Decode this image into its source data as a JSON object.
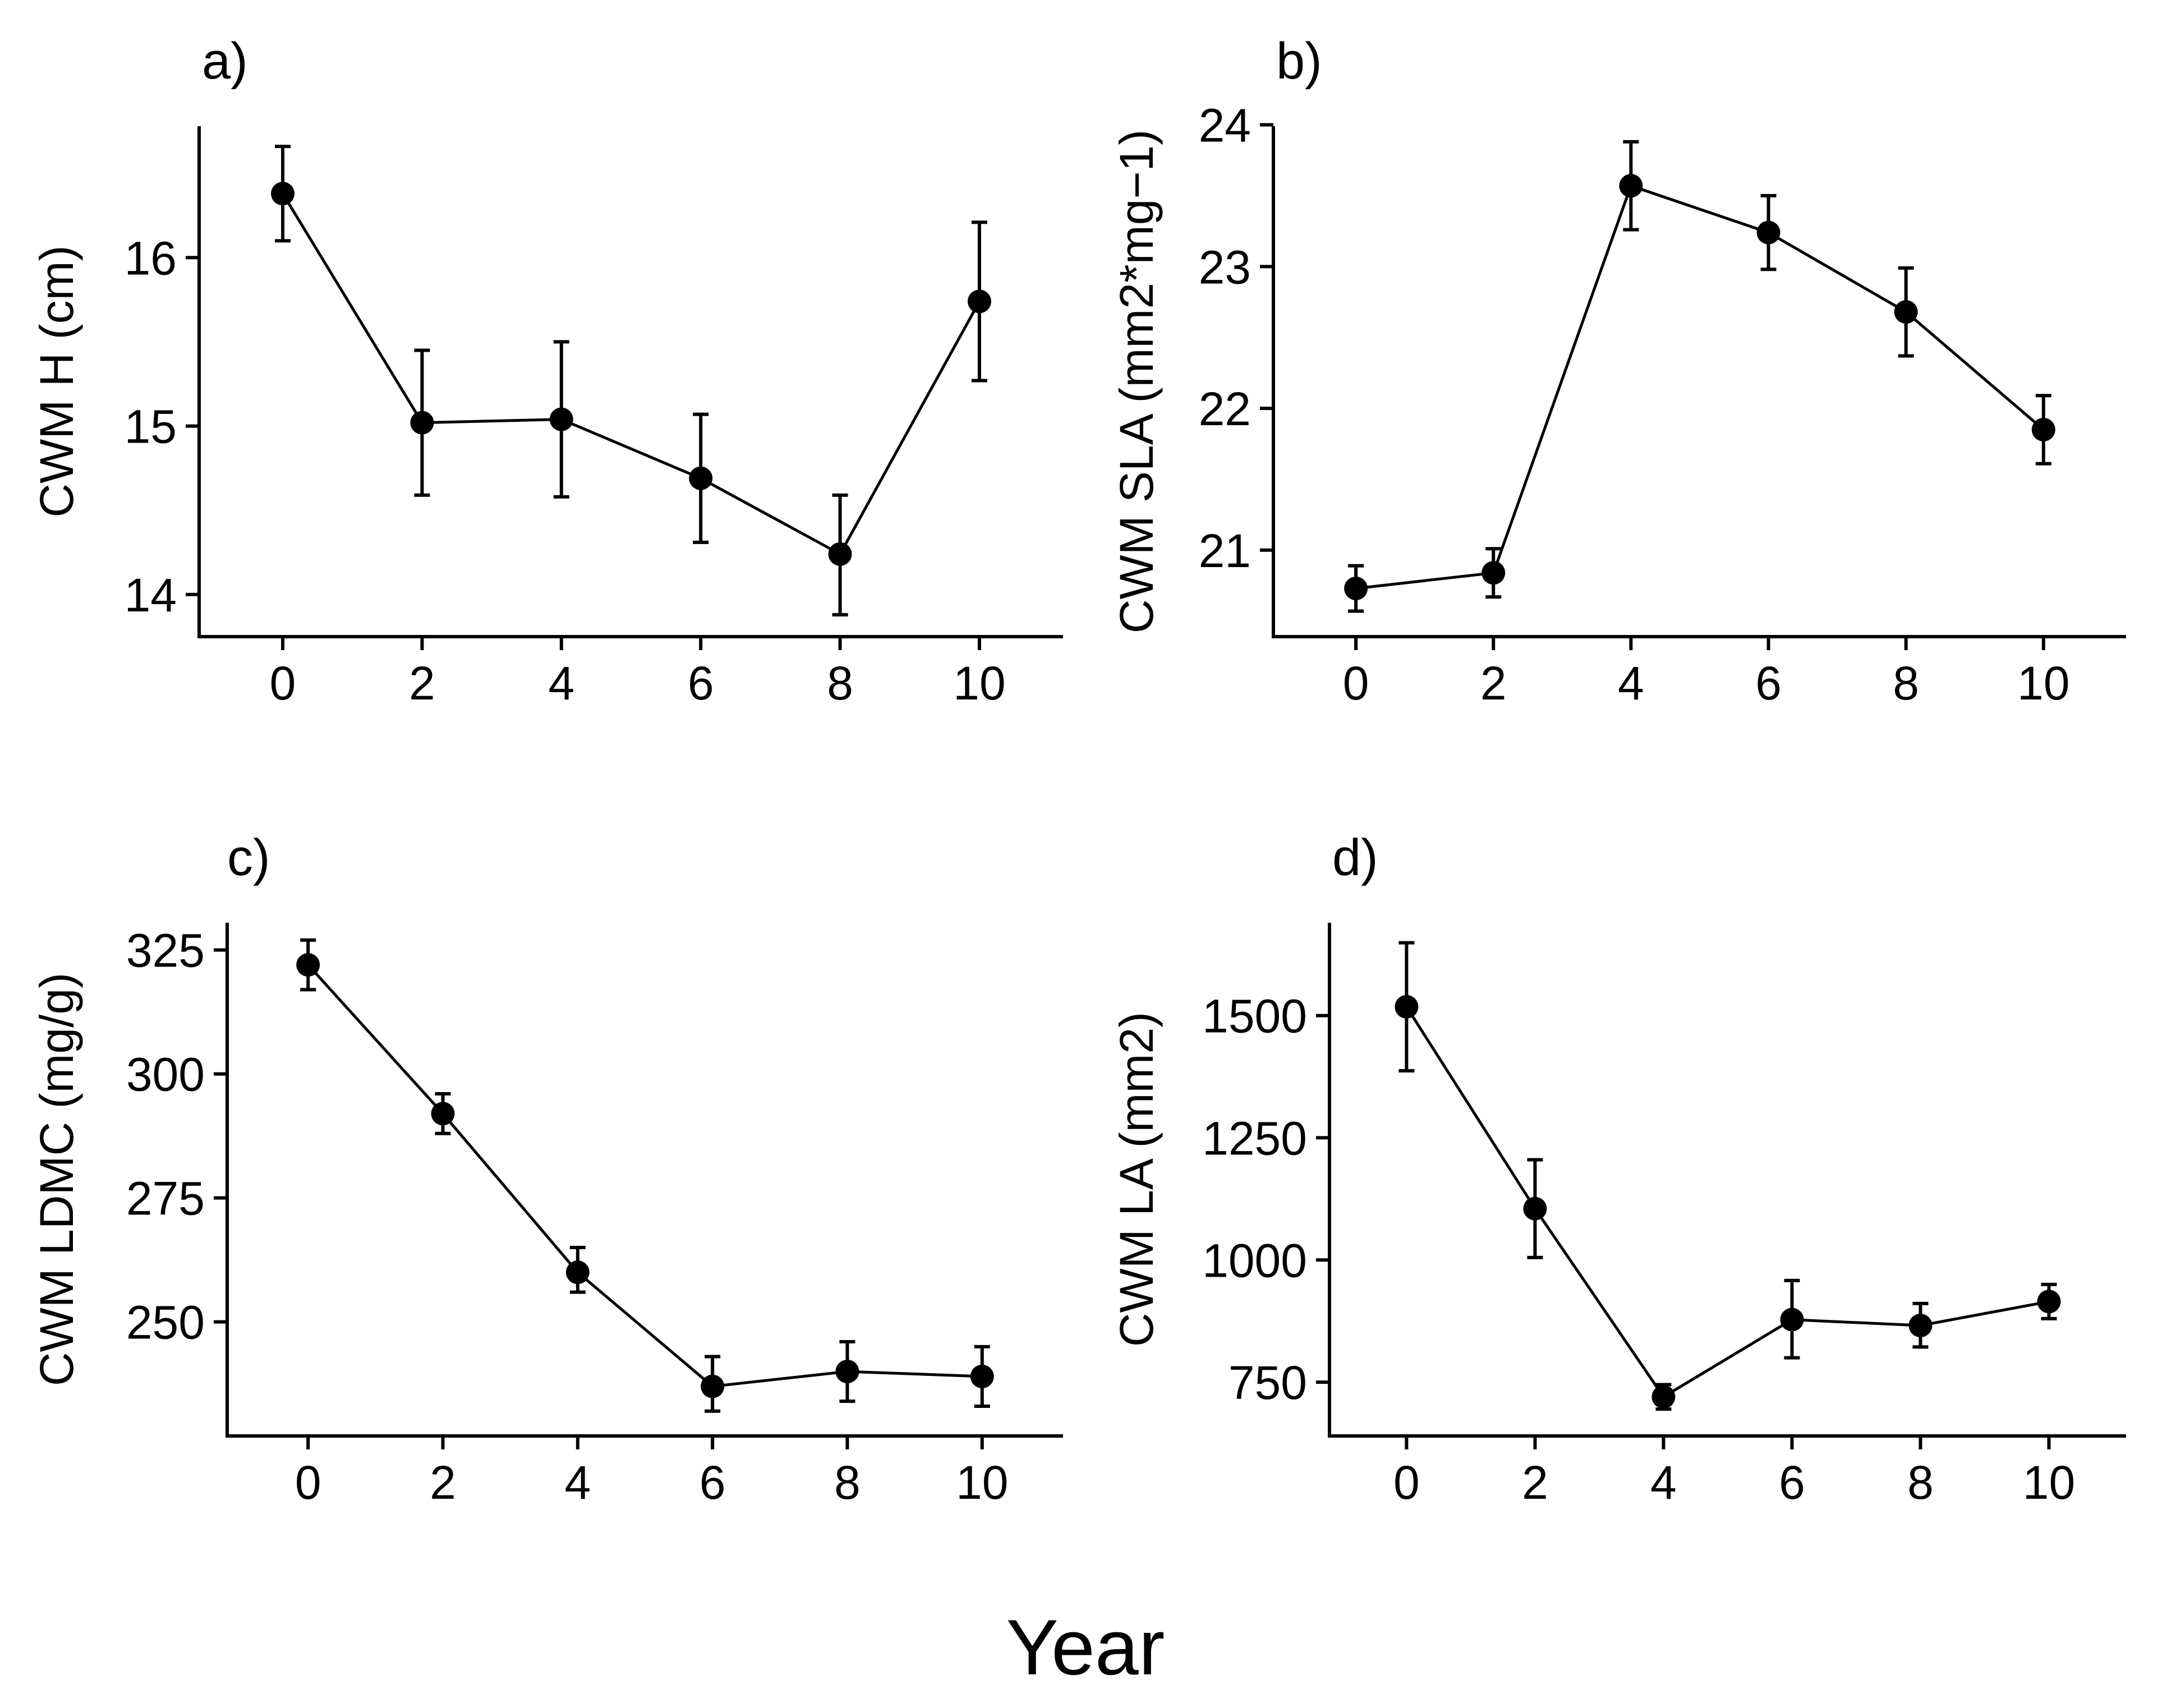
{
  "figure": {
    "shared_xlabel": "Year"
  },
  "chart_data": [
    {
      "panel": "a)",
      "type": "line",
      "ylabel": "CWM H (cm)",
      "xlabel": "",
      "x": [
        0,
        2,
        4,
        6,
        8,
        10
      ],
      "xticks": [
        0,
        2,
        4,
        6,
        8,
        10
      ],
      "xlim": [
        -1.2,
        11.2
      ],
      "yticks": [
        14,
        15,
        16
      ],
      "ylim": [
        13.75,
        16.78
      ],
      "series": [
        {
          "name": "CWM H",
          "values": [
            16.38,
            15.02,
            15.04,
            14.69,
            14.24,
            15.74
          ],
          "err_low": [
            16.1,
            14.59,
            14.58,
            14.31,
            13.88,
            15.27
          ],
          "err_high": [
            16.66,
            15.45,
            15.5,
            15.07,
            14.59,
            16.21
          ]
        }
      ]
    },
    {
      "panel": "b)",
      "type": "line",
      "ylabel": "CWM SLA (mm2*mg−1)",
      "xlabel": "",
      "x": [
        0,
        2,
        4,
        6,
        8,
        10
      ],
      "xticks": [
        0,
        2,
        4,
        6,
        8,
        10
      ],
      "xlim": [
        -1.2,
        11.2
      ],
      "yticks": [
        21,
        22,
        23,
        24
      ],
      "ylim": [
        20.39,
        23.99
      ],
      "series": [
        {
          "name": "CWM SLA",
          "values": [
            20.73,
            20.84,
            23.57,
            23.24,
            22.68,
            21.85
          ],
          "err_low": [
            20.57,
            20.67,
            23.26,
            22.98,
            22.37,
            21.61
          ],
          "err_high": [
            20.89,
            21.01,
            23.88,
            23.5,
            22.99,
            22.09
          ]
        }
      ]
    },
    {
      "panel": "c)",
      "type": "line",
      "ylabel": "CWM LDMC (mg/g)",
      "xlabel": "",
      "x": [
        0,
        2,
        4,
        6,
        8,
        10
      ],
      "xticks": [
        0,
        2,
        4,
        6,
        8,
        10
      ],
      "xlim": [
        -1.2,
        11.2
      ],
      "yticks": [
        250,
        275,
        300,
        325
      ],
      "ylim": [
        227,
        330.5
      ],
      "series": [
        {
          "name": "CWM LDMC",
          "values": [
            322,
            292,
            260,
            237,
            240,
            239
          ],
          "err_low": [
            317,
            288,
            256,
            232,
            234,
            233
          ],
          "err_high": [
            327,
            296,
            265,
            243,
            246,
            245
          ]
        }
      ]
    },
    {
      "panel": "d)",
      "type": "line",
      "ylabel": "CWM LA (mm2)",
      "xlabel": "",
      "x": [
        0,
        2,
        4,
        6,
        8,
        10
      ],
      "xticks": [
        0,
        2,
        4,
        6,
        8,
        10
      ],
      "xlim": [
        -1.2,
        11.2
      ],
      "yticks": [
        750,
        1000,
        1250,
        1500
      ],
      "ylim": [
        640,
        1690
      ],
      "series": [
        {
          "name": "CWM LA",
          "values": [
            1518,
            1105,
            720,
            878,
            866,
            915
          ],
          "err_low": [
            1387,
            1005,
            695,
            800,
            822,
            880
          ],
          "err_high": [
            1649,
            1205,
            745,
            958,
            911,
            950
          ]
        }
      ]
    }
  ]
}
